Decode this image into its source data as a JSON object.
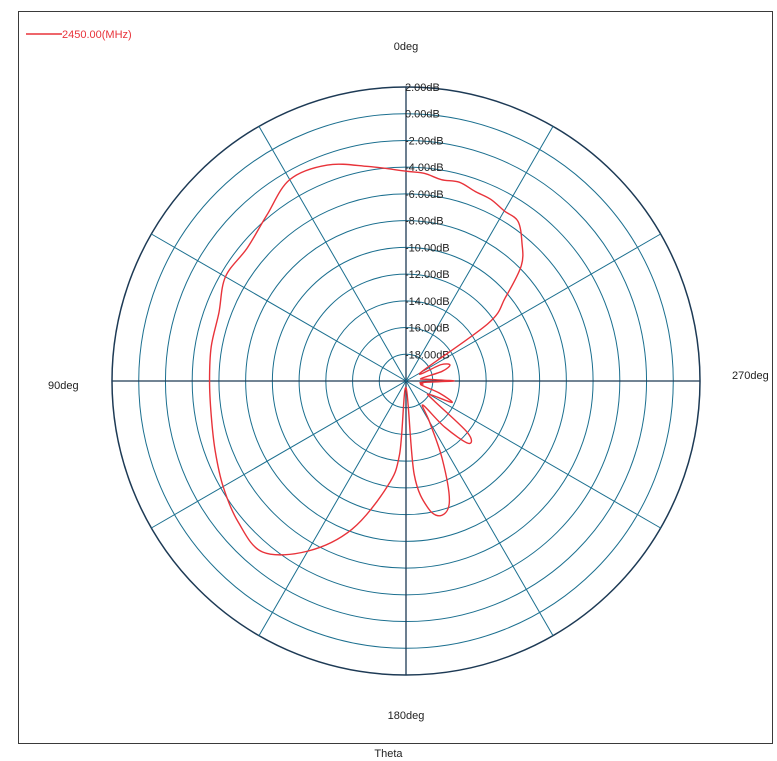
{
  "chart_data": {
    "type": "polar",
    "xlabel": "Theta",
    "angular_labels": [
      "0deg",
      "90deg",
      "180deg",
      "270deg"
    ],
    "radial_tick_labels": [
      "2.00dB",
      "0.00dB",
      "-2.00dB",
      "-4.00dB",
      "-6.00dB",
      "-8.00dB",
      "-10.00dB",
      "-12.00dB",
      "-14.00dB",
      "-16.00dB",
      "-18.00dB"
    ],
    "rlim": [
      -20,
      2
    ],
    "angular_direction": "counterclockwise",
    "zero_location": "top",
    "angular_grid_step_deg": 30,
    "legend": {
      "position": "top-left",
      "entries": [
        "2450.00(MHz)"
      ]
    },
    "grid": true,
    "colors": {
      "grid": "#1b6f8f",
      "outer_ring": "#1d3a55",
      "series": "#e8333a"
    },
    "series": [
      {
        "name": "2450.00(MHz)",
        "theta_deg": [
          0,
          10,
          20,
          30,
          40,
          50,
          60,
          70,
          80,
          90,
          100,
          110,
          120,
          130,
          140,
          150,
          160,
          170,
          175,
          180,
          185,
          190,
          195,
          200,
          205,
          210,
          215,
          220,
          225,
          230,
          235,
          240,
          245,
          250,
          255,
          260,
          265,
          270,
          275,
          280,
          285,
          290,
          295,
          300,
          305,
          310,
          315,
          320,
          325,
          330,
          335,
          340,
          345,
          350,
          355,
          360
        ],
        "gain_db": [
          -4.3,
          -3.7,
          -2.8,
          -2.6,
          -3.8,
          -4.5,
          -4.4,
          -5.1,
          -5.2,
          -5.3,
          -5.2,
          -4.8,
          -4.2,
          -3.6,
          -3.3,
          -5.3,
          -8.2,
          -12.0,
          -14.5,
          -19.5,
          -13.0,
          -10.3,
          -9.6,
          -10.5,
          -13.6,
          -16.5,
          -17.8,
          -15.5,
          -13.4,
          -14.0,
          -17.5,
          -18.0,
          -16.2,
          -17.3,
          -18.8,
          -18.7,
          -18.8,
          -16.4,
          -18.5,
          -18.8,
          -17.2,
          -16.5,
          -17.1,
          -18.7,
          -12.5,
          -10.3,
          -7.8,
          -6.5,
          -5.4,
          -5.3,
          -5.0,
          -4.9,
          -4.6,
          -4.7,
          -4.4,
          -4.3
        ]
      }
    ]
  }
}
